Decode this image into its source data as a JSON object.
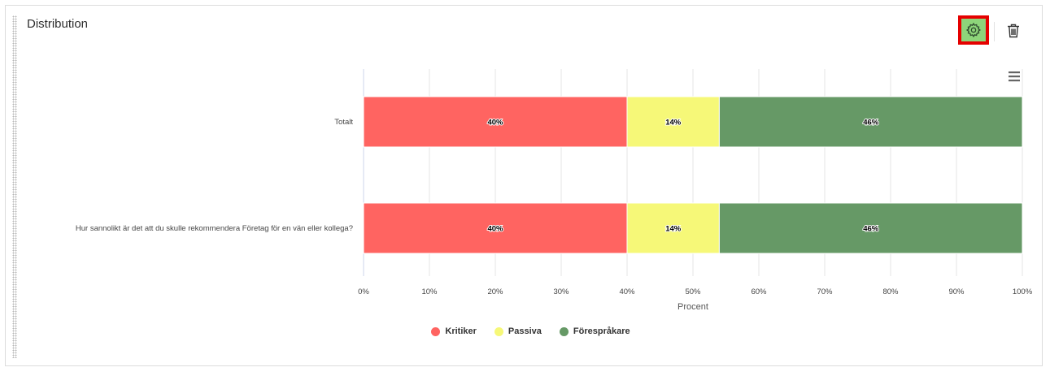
{
  "widget": {
    "title": "Distribution",
    "icons": {
      "settings": "gear-icon",
      "delete": "trash-icon",
      "menu": "hamburger-menu-icon"
    }
  },
  "chart_data": {
    "type": "bar",
    "orientation": "horizontal",
    "stacked": true,
    "categories": [
      "Totalt",
      "Hur sannolikt är det att du skulle rekommendera Företag för en vän eller kollega?"
    ],
    "series": [
      {
        "name": "Kritiker",
        "color": "#ff6461",
        "values": [
          40,
          40
        ],
        "labels": [
          "40%",
          "40%"
        ]
      },
      {
        "name": "Passiva",
        "color": "#f6f878",
        "values": [
          14,
          14
        ],
        "labels": [
          "14%",
          "14%"
        ]
      },
      {
        "name": "Förespråkare",
        "color": "#669966",
        "values": [
          46,
          46
        ],
        "labels": [
          "46%",
          "46%"
        ]
      }
    ],
    "xlabel": "Procent",
    "xlim": [
      0,
      100
    ],
    "xticks": [
      "0%",
      "10%",
      "20%",
      "30%",
      "40%",
      "50%",
      "60%",
      "70%",
      "80%",
      "90%",
      "100%"
    ],
    "grid": true,
    "legend": "bottom-center"
  }
}
